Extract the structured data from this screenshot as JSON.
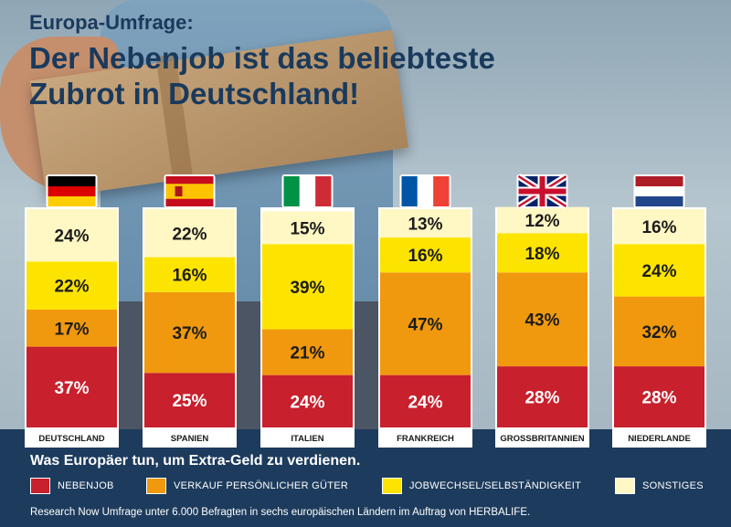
{
  "header": {
    "kicker": "Europa-Umfrage:",
    "title_line1": "Der Nebenjob ist das beliebteste",
    "title_line2": "Zubrot in Deutschland!"
  },
  "footer": {
    "subtitle": "Was Europäer tun, um Extra-Geld zu verdienen.",
    "legend": [
      {
        "label": "NEBENJOB",
        "color": "#c8202d"
      },
      {
        "label": "VERKAUF PERSÖNLICHER GÜTER",
        "color": "#f0990e"
      },
      {
        "label": "JOBWECHSEL/SELBSTÄNDIGKEIT",
        "color": "#fde400"
      },
      {
        "label": "SONSTIGES",
        "color": "#fff7c4"
      }
    ],
    "source": "Research Now Umfrage unter 6.000 Befragten in sechs europäischen Ländern im Auftrag von HERBALIFE."
  },
  "chart_data": {
    "type": "bar",
    "stacked": true,
    "normalized": true,
    "categories": [
      "DEUTSCHLAND",
      "SPANIEN",
      "ITALIEN",
      "FRANKREICH",
      "GROSSBRITANNIEN",
      "NIEDERLANDE"
    ],
    "flags": [
      "germany-flag",
      "spain-flag",
      "italy-flag",
      "france-flag",
      "uk-flag",
      "netherlands-flag"
    ],
    "series": [
      {
        "name": "NEBENJOB",
        "color": "#c8202d",
        "values": [
          37,
          25,
          24,
          24,
          28,
          28
        ]
      },
      {
        "name": "VERKAUF PERSÖNLICHER GÜTER",
        "color": "#f0990e",
        "values": [
          17,
          37,
          21,
          47,
          43,
          32
        ]
      },
      {
        "name": "JOBWECHSEL/SELBSTÄNDIGKEIT",
        "color": "#fde400",
        "values": [
          22,
          16,
          39,
          16,
          18,
          24
        ]
      },
      {
        "name": "SONSTIGES",
        "color": "#fff7c4",
        "values": [
          24,
          22,
          15,
          13,
          12,
          16
        ]
      }
    ],
    "unit": "%"
  }
}
